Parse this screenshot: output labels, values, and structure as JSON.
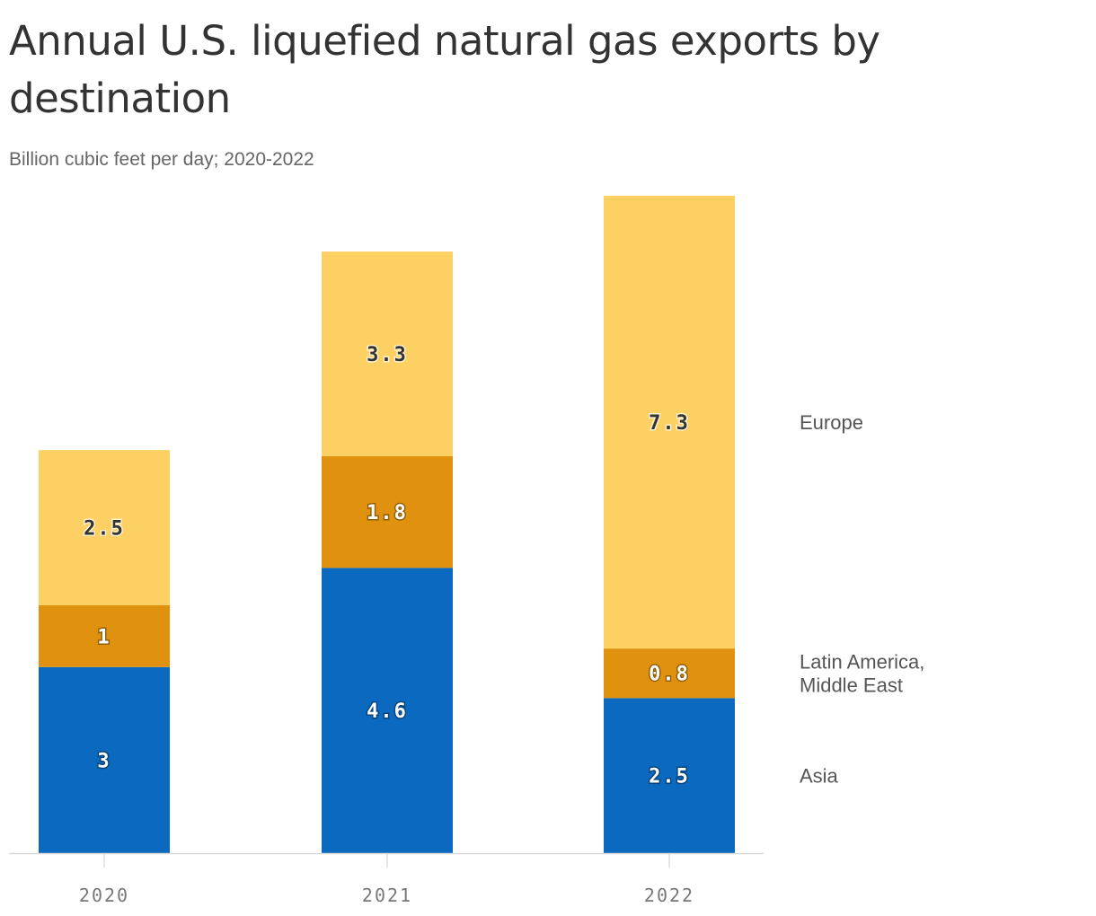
{
  "header": {
    "title": "Annual U.S. liquefied natural gas exports by destination",
    "subtitle": "Billion cubic feet per day; 2020-2022"
  },
  "chart_data": {
    "type": "bar",
    "stacked": true,
    "title": "Annual U.S. liquefied natural gas exports by destination",
    "subtitle": "Billion cubic feet per day; 2020-2022",
    "categories": [
      "2020",
      "2021",
      "2022"
    ],
    "series": [
      {
        "name": "Asia",
        "values": [
          3,
          4.6,
          2.5
        ],
        "labels": [
          "3",
          "4.6",
          "2.5"
        ],
        "color": "#0b69bf",
        "label_color": "#ffffff"
      },
      {
        "name": "Latin America, Middle East",
        "values": [
          1,
          1.8,
          0.8
        ],
        "labels": [
          "1",
          "1.8",
          "0.8"
        ],
        "color": "#e0920f",
        "label_color": "#ffffff"
      },
      {
        "name": "Europe",
        "values": [
          2.5,
          3.3,
          7.3
        ],
        "labels": [
          "2.5",
          "3.3",
          "7.3"
        ],
        "color": "#fdd063",
        "label_color": "#333333"
      }
    ],
    "ylim": [
      0,
      10.6
    ],
    "legend_placement": "right, aligned to last bar",
    "grid": false
  }
}
